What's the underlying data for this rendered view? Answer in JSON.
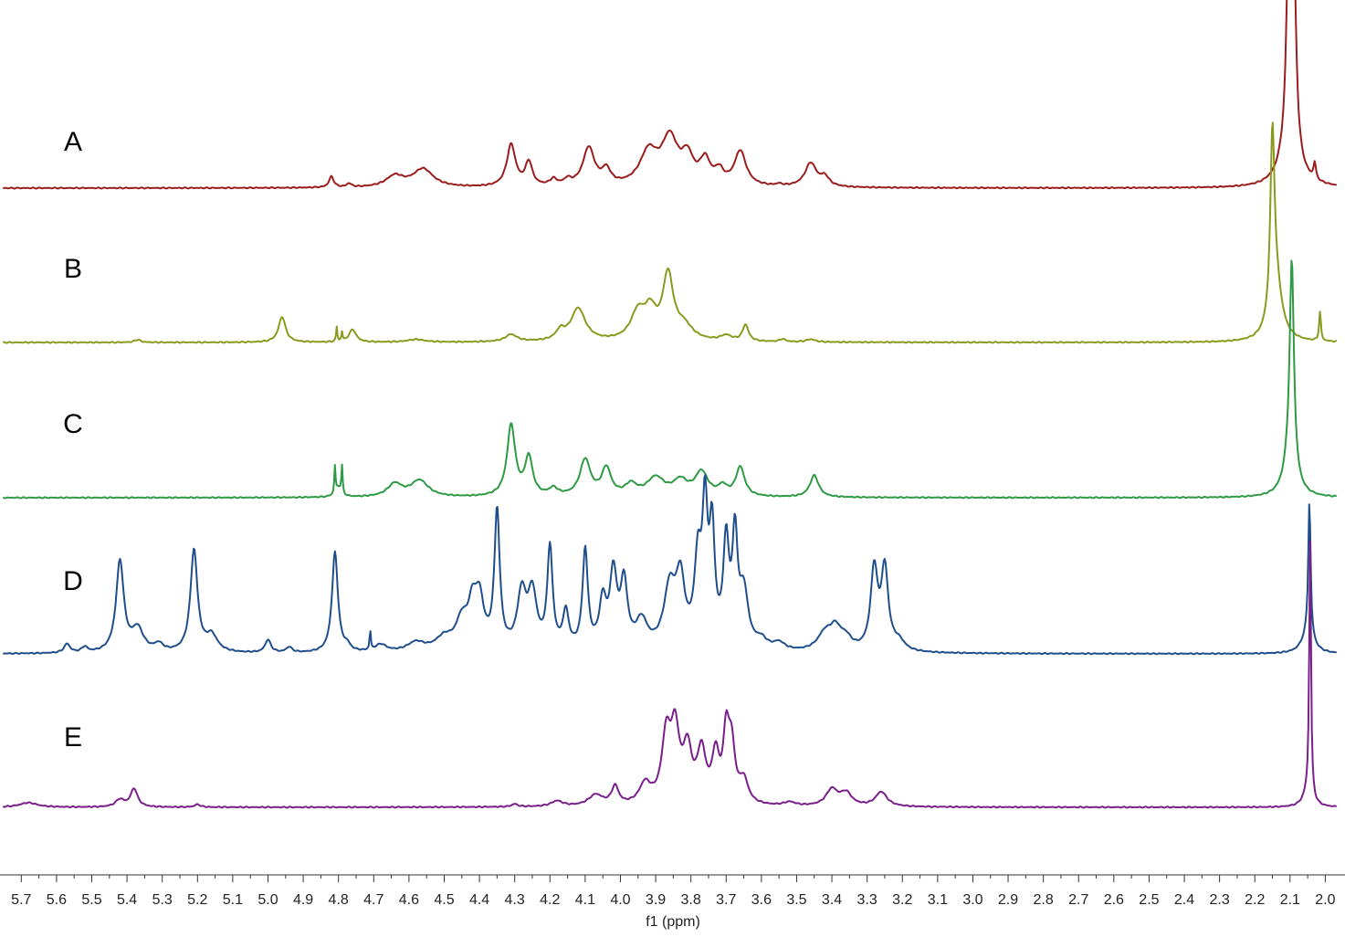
{
  "chart_data": {
    "type": "line",
    "xlabel": "f1 (ppm)",
    "x_reversed": true,
    "xlim": [
      5.75,
      1.97
    ],
    "ticks": [
      5.7,
      5.6,
      5.5,
      5.4,
      5.3,
      5.2,
      5.1,
      5.0,
      4.9,
      4.8,
      4.7,
      4.6,
      4.5,
      4.4,
      4.3,
      4.2,
      4.1,
      4.0,
      3.9,
      3.8,
      3.7,
      3.6,
      3.5,
      3.4,
      3.3,
      3.2,
      3.1,
      3.0,
      2.9,
      2.8,
      2.7,
      2.6,
      2.5,
      2.4,
      2.3,
      2.2,
      2.1,
      2.0
    ],
    "tick_labels": [
      "5.7",
      "5.6",
      "5.5",
      "5.4",
      "5.3",
      "5.2",
      "5.1",
      "5.0",
      "4.9",
      "4.8",
      "4.7",
      "4.6",
      "4.5",
      "4.4",
      "4.3",
      "4.2",
      "4.1",
      "4.0",
      "3.9",
      "3.8",
      "3.7",
      "3.6",
      "3.5",
      "3.4",
      "3.3",
      "3.2",
      "3.1",
      "3.0",
      "2.9",
      "2.8",
      "2.7",
      "2.6",
      "2.5",
      "2.4",
      "2.3",
      "2.2",
      "2.1",
      "2.0"
    ],
    "grid": false,
    "series": [
      {
        "name": "A",
        "color": "#9b1c1c",
        "peaks": [
          [
            4.82,
            12,
            0.008
          ],
          [
            4.77,
            4,
            0.008
          ],
          [
            4.64,
            12,
            0.03
          ],
          [
            4.56,
            20,
            0.035
          ],
          [
            4.31,
            46,
            0.015
          ],
          [
            4.26,
            26,
            0.012
          ],
          [
            4.19,
            7,
            0.012
          ],
          [
            4.15,
            6,
            0.012
          ],
          [
            4.09,
            42,
            0.02
          ],
          [
            4.04,
            16,
            0.015
          ],
          [
            3.92,
            36,
            0.03
          ],
          [
            3.86,
            50,
            0.028
          ],
          [
            3.81,
            28,
            0.02
          ],
          [
            3.76,
            26,
            0.018
          ],
          [
            3.72,
            14,
            0.015
          ],
          [
            3.66,
            38,
            0.02
          ],
          [
            3.55,
            2,
            0.01
          ],
          [
            3.46,
            26,
            0.02
          ],
          [
            3.42,
            10,
            0.015
          ],
          [
            2.105,
            175,
            0.007
          ],
          [
            2.088,
            168,
            0.007
          ],
          [
            2.1,
            70,
            0.025
          ],
          [
            2.03,
            18,
            0.004
          ]
        ]
      },
      {
        "name": "B",
        "color": "#8a9a1e",
        "peaks": [
          [
            5.37,
            3,
            0.01
          ],
          [
            4.96,
            28,
            0.012
          ],
          [
            4.805,
            16,
            0.002
          ],
          [
            4.79,
            10,
            0.002
          ],
          [
            4.76,
            14,
            0.012
          ],
          [
            4.58,
            3,
            0.03
          ],
          [
            4.31,
            8,
            0.02
          ],
          [
            4.17,
            10,
            0.015
          ],
          [
            4.12,
            36,
            0.025
          ],
          [
            3.95,
            30,
            0.025
          ],
          [
            3.915,
            28,
            0.02
          ],
          [
            3.865,
            70,
            0.018
          ],
          [
            3.82,
            15,
            0.03
          ],
          [
            3.7,
            6,
            0.02
          ],
          [
            3.645,
            18,
            0.01
          ],
          [
            3.54,
            3,
            0.01
          ],
          [
            3.46,
            3,
            0.015
          ],
          [
            2.15,
            195,
            0.007
          ],
          [
            2.14,
            60,
            0.02
          ],
          [
            2.015,
            32,
            0.003
          ]
        ]
      },
      {
        "name": "C",
        "color": "#2e9a43",
        "peaks": [
          [
            4.81,
            30,
            0.002
          ],
          [
            4.79,
            30,
            0.002
          ],
          [
            4.8,
            10,
            0.01
          ],
          [
            4.64,
            14,
            0.025
          ],
          [
            4.57,
            18,
            0.03
          ],
          [
            4.31,
            78,
            0.014
          ],
          [
            4.26,
            42,
            0.013
          ],
          [
            4.19,
            8,
            0.015
          ],
          [
            4.1,
            40,
            0.018
          ],
          [
            4.04,
            30,
            0.016
          ],
          [
            3.97,
            12,
            0.02
          ],
          [
            3.9,
            20,
            0.03
          ],
          [
            3.83,
            16,
            0.025
          ],
          [
            3.77,
            26,
            0.022
          ],
          [
            3.71,
            10,
            0.015
          ],
          [
            3.66,
            32,
            0.015
          ],
          [
            3.45,
            24,
            0.015
          ],
          [
            2.095,
            225,
            0.007
          ],
          [
            2.1,
            40,
            0.02
          ]
        ]
      },
      {
        "name": "D",
        "color": "#1f4e8c",
        "peaks": [
          [
            5.57,
            10,
            0.01
          ],
          [
            5.52,
            6,
            0.01
          ],
          [
            5.42,
            100,
            0.013
          ],
          [
            5.37,
            25,
            0.02
          ],
          [
            5.31,
            8,
            0.015
          ],
          [
            5.21,
            112,
            0.012
          ],
          [
            5.16,
            18,
            0.02
          ],
          [
            5.0,
            14,
            0.01
          ],
          [
            4.94,
            6,
            0.01
          ],
          [
            4.81,
            110,
            0.01
          ],
          [
            4.775,
            6,
            0.01
          ],
          [
            4.71,
            22,
            0.002
          ],
          [
            4.68,
            8,
            0.02
          ],
          [
            4.58,
            10,
            0.03
          ],
          [
            4.5,
            14,
            0.03
          ],
          [
            4.45,
            30,
            0.02
          ],
          [
            4.42,
            42,
            0.015
          ],
          [
            4.4,
            50,
            0.015
          ],
          [
            4.35,
            150,
            0.009
          ],
          [
            4.28,
            60,
            0.015
          ],
          [
            4.25,
            60,
            0.015
          ],
          [
            4.2,
            110,
            0.009
          ],
          [
            4.155,
            40,
            0.01
          ],
          [
            4.1,
            108,
            0.009
          ],
          [
            4.05,
            50,
            0.012
          ],
          [
            4.02,
            80,
            0.012
          ],
          [
            3.99,
            70,
            0.012
          ],
          [
            3.94,
            30,
            0.02
          ],
          [
            3.86,
            65,
            0.02
          ],
          [
            3.83,
            70,
            0.015
          ],
          [
            3.78,
            90,
            0.012
          ],
          [
            3.76,
            140,
            0.009
          ],
          [
            3.74,
            120,
            0.009
          ],
          [
            3.7,
            110,
            0.01
          ],
          [
            3.675,
            115,
            0.009
          ],
          [
            3.65,
            60,
            0.015
          ],
          [
            3.6,
            10,
            0.02
          ],
          [
            3.55,
            8,
            0.02
          ],
          [
            3.42,
            18,
            0.025
          ],
          [
            3.39,
            22,
            0.02
          ],
          [
            3.36,
            12,
            0.02
          ],
          [
            3.28,
            88,
            0.012
          ],
          [
            3.25,
            88,
            0.012
          ],
          [
            3.21,
            10,
            0.02
          ],
          [
            2.045,
            148,
            0.004
          ],
          [
            2.05,
            20,
            0.02
          ]
        ]
      },
      {
        "name": "E",
        "color": "#7a1e8c",
        "peaks": [
          [
            5.68,
            5,
            0.03
          ],
          [
            5.42,
            8,
            0.015
          ],
          [
            5.38,
            20,
            0.012
          ],
          [
            5.2,
            3,
            0.01
          ],
          [
            4.3,
            3,
            0.01
          ],
          [
            4.18,
            6,
            0.02
          ],
          [
            4.07,
            12,
            0.025
          ],
          [
            4.015,
            20,
            0.012
          ],
          [
            3.93,
            22,
            0.02
          ],
          [
            3.87,
            70,
            0.015
          ],
          [
            3.845,
            75,
            0.015
          ],
          [
            3.81,
            55,
            0.015
          ],
          [
            3.77,
            55,
            0.015
          ],
          [
            3.73,
            50,
            0.012
          ],
          [
            3.7,
            68,
            0.01
          ],
          [
            3.685,
            60,
            0.012
          ],
          [
            3.65,
            25,
            0.015
          ],
          [
            3.52,
            4,
            0.02
          ],
          [
            3.4,
            18,
            0.02
          ],
          [
            3.36,
            14,
            0.02
          ],
          [
            3.26,
            16,
            0.02
          ],
          [
            2.043,
            280,
            0.003
          ],
          [
            2.05,
            15,
            0.015
          ]
        ]
      }
    ]
  }
}
